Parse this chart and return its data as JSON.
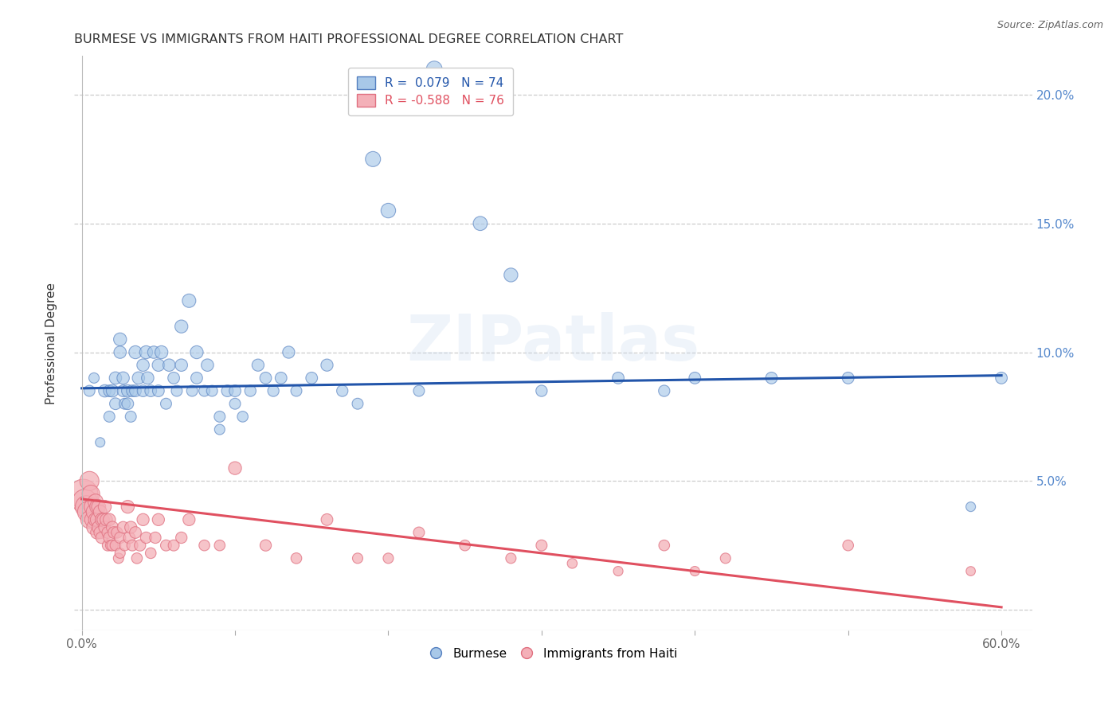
{
  "title": "BURMESE VS IMMIGRANTS FROM HAITI PROFESSIONAL DEGREE CORRELATION CHART",
  "source": "Source: ZipAtlas.com",
  "ylabel": "Professional Degree",
  "xlim": [
    -0.005,
    0.62
  ],
  "ylim": [
    -0.008,
    0.215
  ],
  "xticks": [
    0.0,
    0.1,
    0.2,
    0.3,
    0.4,
    0.5,
    0.6
  ],
  "xtick_labels": [
    "0.0%",
    "",
    "",
    "",
    "",
    "",
    "60.0%"
  ],
  "yticks": [
    0.0,
    0.05,
    0.1,
    0.15,
    0.2
  ],
  "right_ytick_labels": [
    "",
    "5.0%",
    "10.0%",
    "15.0%",
    "20.0%"
  ],
  "blue_color": "#a8c8e8",
  "pink_color": "#f4b0b8",
  "blue_edge_color": "#5580c0",
  "pink_edge_color": "#e07080",
  "blue_line_color": "#2255aa",
  "pink_line_color": "#e05060",
  "background_color": "#ffffff",
  "grid_color": "#cccccc",
  "title_fontsize": 11.5,
  "axis_label_fontsize": 11,
  "tick_fontsize": 11,
  "blue_line_x0": 0.0,
  "blue_line_y0": 0.086,
  "blue_line_x1": 0.6,
  "blue_line_y1": 0.091,
  "pink_line_x0": 0.0,
  "pink_line_y0": 0.043,
  "pink_line_x1": 0.6,
  "pink_line_y1": 0.001,
  "blue_scatter_x": [
    0.005,
    0.008,
    0.012,
    0.015,
    0.018,
    0.018,
    0.02,
    0.022,
    0.022,
    0.025,
    0.025,
    0.027,
    0.027,
    0.028,
    0.03,
    0.03,
    0.032,
    0.033,
    0.035,
    0.035,
    0.037,
    0.04,
    0.04,
    0.042,
    0.043,
    0.045,
    0.047,
    0.05,
    0.05,
    0.052,
    0.055,
    0.057,
    0.06,
    0.062,
    0.065,
    0.065,
    0.07,
    0.072,
    0.075,
    0.075,
    0.08,
    0.082,
    0.085,
    0.09,
    0.09,
    0.095,
    0.1,
    0.1,
    0.105,
    0.11,
    0.115,
    0.12,
    0.125,
    0.13,
    0.135,
    0.14,
    0.15,
    0.16,
    0.17,
    0.18,
    0.19,
    0.2,
    0.22,
    0.23,
    0.26,
    0.28,
    0.3,
    0.35,
    0.38,
    0.4,
    0.45,
    0.5,
    0.58,
    0.6
  ],
  "blue_scatter_y": [
    0.085,
    0.09,
    0.065,
    0.085,
    0.085,
    0.075,
    0.085,
    0.08,
    0.09,
    0.105,
    0.1,
    0.085,
    0.09,
    0.08,
    0.08,
    0.085,
    0.075,
    0.085,
    0.085,
    0.1,
    0.09,
    0.085,
    0.095,
    0.1,
    0.09,
    0.085,
    0.1,
    0.095,
    0.085,
    0.1,
    0.08,
    0.095,
    0.09,
    0.085,
    0.095,
    0.11,
    0.12,
    0.085,
    0.09,
    0.1,
    0.085,
    0.095,
    0.085,
    0.07,
    0.075,
    0.085,
    0.08,
    0.085,
    0.075,
    0.085,
    0.095,
    0.09,
    0.085,
    0.09,
    0.1,
    0.085,
    0.09,
    0.095,
    0.085,
    0.08,
    0.175,
    0.155,
    0.085,
    0.21,
    0.15,
    0.13,
    0.085,
    0.09,
    0.085,
    0.09,
    0.09,
    0.09,
    0.04,
    0.09
  ],
  "blue_scatter_size": [
    40,
    35,
    30,
    50,
    45,
    40,
    50,
    45,
    50,
    55,
    50,
    45,
    50,
    40,
    45,
    50,
    40,
    45,
    45,
    55,
    50,
    45,
    50,
    55,
    50,
    45,
    50,
    50,
    45,
    55,
    40,
    50,
    45,
    40,
    50,
    55,
    60,
    40,
    45,
    55,
    40,
    50,
    40,
    35,
    40,
    45,
    40,
    45,
    38,
    42,
    48,
    45,
    42,
    45,
    48,
    40,
    45,
    48,
    42,
    40,
    75,
    70,
    40,
    80,
    65,
    62,
    42,
    45,
    42,
    45,
    45,
    45,
    30,
    45
  ],
  "pink_scatter_x": [
    0.001,
    0.002,
    0.003,
    0.004,
    0.005,
    0.005,
    0.006,
    0.007,
    0.007,
    0.008,
    0.008,
    0.009,
    0.009,
    0.01,
    0.01,
    0.01,
    0.011,
    0.011,
    0.012,
    0.012,
    0.013,
    0.013,
    0.014,
    0.015,
    0.015,
    0.016,
    0.017,
    0.017,
    0.018,
    0.018,
    0.019,
    0.02,
    0.02,
    0.021,
    0.022,
    0.023,
    0.024,
    0.025,
    0.025,
    0.027,
    0.028,
    0.03,
    0.031,
    0.032,
    0.033,
    0.035,
    0.036,
    0.038,
    0.04,
    0.042,
    0.045,
    0.048,
    0.05,
    0.055,
    0.06,
    0.065,
    0.07,
    0.08,
    0.09,
    0.1,
    0.12,
    0.14,
    0.16,
    0.18,
    0.2,
    0.22,
    0.25,
    0.28,
    0.3,
    0.32,
    0.35,
    0.38,
    0.4,
    0.42,
    0.5,
    0.58
  ],
  "pink_scatter_y": [
    0.045,
    0.042,
    0.04,
    0.038,
    0.05,
    0.035,
    0.045,
    0.04,
    0.035,
    0.038,
    0.032,
    0.042,
    0.035,
    0.04,
    0.035,
    0.03,
    0.04,
    0.032,
    0.038,
    0.03,
    0.035,
    0.028,
    0.035,
    0.04,
    0.032,
    0.035,
    0.03,
    0.025,
    0.028,
    0.035,
    0.025,
    0.032,
    0.025,
    0.03,
    0.025,
    0.03,
    0.02,
    0.028,
    0.022,
    0.032,
    0.025,
    0.04,
    0.028,
    0.032,
    0.025,
    0.03,
    0.02,
    0.025,
    0.035,
    0.028,
    0.022,
    0.028,
    0.035,
    0.025,
    0.025,
    0.028,
    0.035,
    0.025,
    0.025,
    0.055,
    0.025,
    0.02,
    0.035,
    0.02,
    0.02,
    0.03,
    0.025,
    0.02,
    0.025,
    0.018,
    0.015,
    0.025,
    0.015,
    0.02,
    0.025,
    0.015
  ],
  "pink_scatter_size": [
    280,
    200,
    160,
    140,
    120,
    100,
    100,
    90,
    80,
    80,
    70,
    75,
    65,
    70,
    60,
    55,
    65,
    55,
    60,
    50,
    55,
    45,
    50,
    55,
    48,
    50,
    45,
    40,
    45,
    50,
    38,
    48,
    40,
    45,
    38,
    42,
    35,
    42,
    35,
    45,
    38,
    55,
    45,
    48,
    40,
    45,
    38,
    42,
    48,
    42,
    38,
    42,
    48,
    40,
    40,
    42,
    48,
    38,
    38,
    55,
    42,
    38,
    45,
    35,
    35,
    40,
    38,
    35,
    40,
    32,
    30,
    38,
    30,
    35,
    38,
    28
  ]
}
